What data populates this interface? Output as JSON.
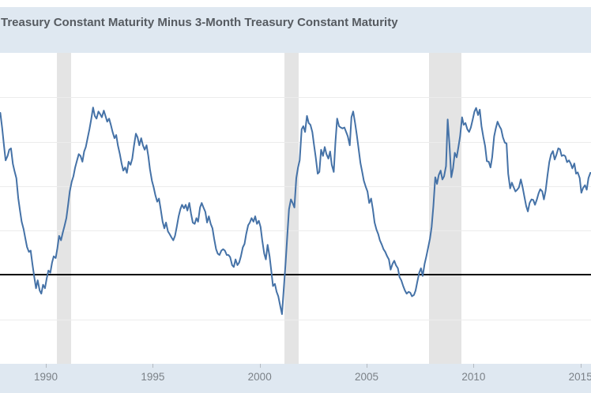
{
  "header": {
    "title": "Treasury Constant Maturity Minus 3-Month Treasury Constant Maturity"
  },
  "colors": {
    "line": "#4572a7",
    "header_background": "#dfe8f1",
    "axis_background": "#dfe8f1",
    "recession_band": "#e4e4e4",
    "gridline": "#ececec",
    "zero_line": "#000000",
    "title_text": "#565b61",
    "axis_label_text": "#7b8187"
  },
  "chart_data": {
    "type": "line",
    "title": "Treasury Constant Maturity Minus 3-Month Treasury Constant Maturity",
    "xlabel": "",
    "ylabel": "",
    "grid": true,
    "legend_position": "none",
    "xlim": [
      1987.857,
      2015.49
    ],
    "ylim": [
      -2,
      5
    ],
    "gridline_step": 1,
    "gridline_values": [
      4,
      3,
      2,
      1,
      -1
    ],
    "zero_line_value": 0,
    "x_tick_values": [
      1990,
      1995,
      2000,
      2005,
      2010,
      2015
    ],
    "x_tick_labels": [
      "1990",
      "1995",
      "2000",
      "2005",
      "2010",
      "2015"
    ],
    "recession_bands": [
      [
        1990.5,
        1991.17
      ],
      [
        2001.17,
        2001.83
      ],
      [
        2007.92,
        2009.42
      ]
    ],
    "series_name": "Treasury Constant Maturity Minus 3-Month Treasury Constant Maturity",
    "points": [
      [
        1987.87,
        3.65
      ],
      [
        1987.96,
        3.3
      ],
      [
        1988.04,
        2.92
      ],
      [
        1988.12,
        2.58
      ],
      [
        1988.21,
        2.68
      ],
      [
        1988.29,
        2.82
      ],
      [
        1988.37,
        2.85
      ],
      [
        1988.46,
        2.5
      ],
      [
        1988.54,
        2.33
      ],
      [
        1988.62,
        2.18
      ],
      [
        1988.71,
        1.73
      ],
      [
        1988.79,
        1.45
      ],
      [
        1988.87,
        1.2
      ],
      [
        1988.96,
        1.03
      ],
      [
        1989.04,
        0.83
      ],
      [
        1989.12,
        0.63
      ],
      [
        1989.21,
        0.52
      ],
      [
        1989.29,
        0.55
      ],
      [
        1989.37,
        0.25
      ],
      [
        1989.46,
        -0.05
      ],
      [
        1989.54,
        -0.3
      ],
      [
        1989.62,
        -0.12
      ],
      [
        1989.71,
        -0.35
      ],
      [
        1989.79,
        -0.42
      ],
      [
        1989.87,
        -0.22
      ],
      [
        1989.96,
        -0.3
      ],
      [
        1990.04,
        -0.08
      ],
      [
        1990.12,
        0.1
      ],
      [
        1990.21,
        0.05
      ],
      [
        1990.29,
        0.28
      ],
      [
        1990.37,
        0.42
      ],
      [
        1990.46,
        0.38
      ],
      [
        1990.54,
        0.6
      ],
      [
        1990.62,
        0.88
      ],
      [
        1990.71,
        0.78
      ],
      [
        1990.79,
        0.95
      ],
      [
        1990.87,
        1.1
      ],
      [
        1990.96,
        1.28
      ],
      [
        1991.04,
        1.58
      ],
      [
        1991.12,
        1.88
      ],
      [
        1991.21,
        2.1
      ],
      [
        1991.29,
        2.22
      ],
      [
        1991.37,
        2.42
      ],
      [
        1991.46,
        2.58
      ],
      [
        1991.54,
        2.72
      ],
      [
        1991.62,
        2.68
      ],
      [
        1991.71,
        2.55
      ],
      [
        1991.79,
        2.78
      ],
      [
        1991.87,
        2.88
      ],
      [
        1991.96,
        3.1
      ],
      [
        1992.04,
        3.28
      ],
      [
        1992.12,
        3.5
      ],
      [
        1992.21,
        3.77
      ],
      [
        1992.29,
        3.58
      ],
      [
        1992.37,
        3.52
      ],
      [
        1992.46,
        3.68
      ],
      [
        1992.54,
        3.62
      ],
      [
        1992.62,
        3.55
      ],
      [
        1992.71,
        3.7
      ],
      [
        1992.79,
        3.58
      ],
      [
        1992.87,
        3.45
      ],
      [
        1992.96,
        3.52
      ],
      [
        1993.04,
        3.38
      ],
      [
        1993.12,
        3.22
      ],
      [
        1993.21,
        3.08
      ],
      [
        1993.29,
        3.15
      ],
      [
        1993.37,
        2.92
      ],
      [
        1993.46,
        2.72
      ],
      [
        1993.54,
        2.52
      ],
      [
        1993.62,
        2.35
      ],
      [
        1993.71,
        2.42
      ],
      [
        1993.79,
        2.3
      ],
      [
        1993.87,
        2.55
      ],
      [
        1993.96,
        2.48
      ],
      [
        1994.04,
        2.62
      ],
      [
        1994.12,
        2.9
      ],
      [
        1994.21,
        3.18
      ],
      [
        1994.29,
        3.1
      ],
      [
        1994.37,
        2.92
      ],
      [
        1994.46,
        3.08
      ],
      [
        1994.54,
        2.92
      ],
      [
        1994.62,
        2.82
      ],
      [
        1994.71,
        2.92
      ],
      [
        1994.79,
        2.68
      ],
      [
        1994.87,
        2.38
      ],
      [
        1994.96,
        2.12
      ],
      [
        1995.04,
        1.98
      ],
      [
        1995.12,
        1.8
      ],
      [
        1995.21,
        1.65
      ],
      [
        1995.29,
        1.72
      ],
      [
        1995.37,
        1.48
      ],
      [
        1995.46,
        1.2
      ],
      [
        1995.54,
        1.05
      ],
      [
        1995.62,
        1.18
      ],
      [
        1995.71,
        0.98
      ],
      [
        1995.79,
        0.92
      ],
      [
        1995.87,
        0.85
      ],
      [
        1995.96,
        0.78
      ],
      [
        1996.04,
        0.88
      ],
      [
        1996.12,
        1.08
      ],
      [
        1996.21,
        1.32
      ],
      [
        1996.29,
        1.48
      ],
      [
        1996.37,
        1.58
      ],
      [
        1996.46,
        1.5
      ],
      [
        1996.54,
        1.58
      ],
      [
        1996.62,
        1.45
      ],
      [
        1996.71,
        1.62
      ],
      [
        1996.79,
        1.38
      ],
      [
        1996.87,
        1.18
      ],
      [
        1996.96,
        1.15
      ],
      [
        1997.04,
        1.28
      ],
      [
        1997.12,
        1.2
      ],
      [
        1997.21,
        1.52
      ],
      [
        1997.29,
        1.62
      ],
      [
        1997.37,
        1.52
      ],
      [
        1997.46,
        1.42
      ],
      [
        1997.54,
        1.18
      ],
      [
        1997.62,
        1.32
      ],
      [
        1997.71,
        1.15
      ],
      [
        1997.79,
        1.05
      ],
      [
        1997.87,
        0.82
      ],
      [
        1997.96,
        0.58
      ],
      [
        1998.04,
        0.48
      ],
      [
        1998.12,
        0.45
      ],
      [
        1998.21,
        0.55
      ],
      [
        1998.29,
        0.58
      ],
      [
        1998.37,
        0.55
      ],
      [
        1998.46,
        0.45
      ],
      [
        1998.54,
        0.45
      ],
      [
        1998.62,
        0.4
      ],
      [
        1998.71,
        0.22
      ],
      [
        1998.79,
        0.18
      ],
      [
        1998.87,
        0.35
      ],
      [
        1998.96,
        0.22
      ],
      [
        1999.04,
        0.28
      ],
      [
        1999.12,
        0.42
      ],
      [
        1999.21,
        0.62
      ],
      [
        1999.29,
        0.7
      ],
      [
        1999.37,
        0.92
      ],
      [
        1999.46,
        1.12
      ],
      [
        1999.54,
        1.18
      ],
      [
        1999.62,
        1.28
      ],
      [
        1999.71,
        1.2
      ],
      [
        1999.79,
        1.32
      ],
      [
        1999.87,
        1.15
      ],
      [
        1999.96,
        1.22
      ],
      [
        2000.04,
        1.08
      ],
      [
        2000.12,
        0.78
      ],
      [
        2000.21,
        0.48
      ],
      [
        2000.29,
        0.35
      ],
      [
        2000.37,
        0.68
      ],
      [
        2000.46,
        0.42
      ],
      [
        2000.54,
        0.1
      ],
      [
        2000.62,
        -0.25
      ],
      [
        2000.71,
        -0.2
      ],
      [
        2000.79,
        -0.38
      ],
      [
        2000.87,
        -0.48
      ],
      [
        2000.96,
        -0.7
      ],
      [
        2001.04,
        -0.88
      ],
      [
        2001.12,
        -0.35
      ],
      [
        2001.21,
        0.28
      ],
      [
        2001.29,
        0.88
      ],
      [
        2001.37,
        1.48
      ],
      [
        2001.46,
        1.7
      ],
      [
        2001.54,
        1.62
      ],
      [
        2001.62,
        1.52
      ],
      [
        2001.71,
        2.18
      ],
      [
        2001.79,
        2.42
      ],
      [
        2001.87,
        2.58
      ],
      [
        2001.96,
        3.28
      ],
      [
        2002.04,
        3.35
      ],
      [
        2002.12,
        3.22
      ],
      [
        2002.21,
        3.58
      ],
      [
        2002.29,
        3.42
      ],
      [
        2002.37,
        3.38
      ],
      [
        2002.46,
        3.22
      ],
      [
        2002.54,
        2.92
      ],
      [
        2002.62,
        2.65
      ],
      [
        2002.71,
        2.28
      ],
      [
        2002.79,
        2.32
      ],
      [
        2002.87,
        2.82
      ],
      [
        2002.96,
        2.68
      ],
      [
        2003.04,
        2.88
      ],
      [
        2003.12,
        2.72
      ],
      [
        2003.21,
        2.62
      ],
      [
        2003.29,
        2.78
      ],
      [
        2003.37,
        2.48
      ],
      [
        2003.46,
        2.32
      ],
      [
        2003.54,
        2.98
      ],
      [
        2003.62,
        3.52
      ],
      [
        2003.71,
        3.35
      ],
      [
        2003.79,
        3.32
      ],
      [
        2003.87,
        3.3
      ],
      [
        2003.96,
        3.32
      ],
      [
        2004.04,
        3.22
      ],
      [
        2004.12,
        3.12
      ],
      [
        2004.21,
        2.92
      ],
      [
        2004.29,
        3.55
      ],
      [
        2004.37,
        3.68
      ],
      [
        2004.46,
        3.42
      ],
      [
        2004.54,
        3.15
      ],
      [
        2004.62,
        2.85
      ],
      [
        2004.71,
        2.52
      ],
      [
        2004.79,
        2.32
      ],
      [
        2004.87,
        2.12
      ],
      [
        2004.96,
        1.98
      ],
      [
        2005.04,
        1.88
      ],
      [
        2005.12,
        1.62
      ],
      [
        2005.21,
        1.72
      ],
      [
        2005.29,
        1.48
      ],
      [
        2005.37,
        1.18
      ],
      [
        2005.46,
        1.02
      ],
      [
        2005.54,
        0.92
      ],
      [
        2005.62,
        0.78
      ],
      [
        2005.71,
        0.68
      ],
      [
        2005.79,
        0.58
      ],
      [
        2005.87,
        0.52
      ],
      [
        2005.96,
        0.42
      ],
      [
        2006.04,
        0.35
      ],
      [
        2006.12,
        0.12
      ],
      [
        2006.21,
        0.25
      ],
      [
        2006.29,
        0.32
      ],
      [
        2006.37,
        0.22
      ],
      [
        2006.46,
        0.15
      ],
      [
        2006.54,
        -0.05
      ],
      [
        2006.62,
        -0.12
      ],
      [
        2006.71,
        -0.25
      ],
      [
        2006.79,
        -0.35
      ],
      [
        2006.87,
        -0.42
      ],
      [
        2006.96,
        -0.38
      ],
      [
        2007.04,
        -0.4
      ],
      [
        2007.12,
        -0.48
      ],
      [
        2007.21,
        -0.45
      ],
      [
        2007.29,
        -0.35
      ],
      [
        2007.37,
        -0.15
      ],
      [
        2007.46,
        0.05
      ],
      [
        2007.54,
        0.15
      ],
      [
        2007.62,
        -0.02
      ],
      [
        2007.71,
        0.25
      ],
      [
        2007.79,
        0.42
      ],
      [
        2007.87,
        0.6
      ],
      [
        2007.96,
        0.82
      ],
      [
        2008.04,
        1.08
      ],
      [
        2008.12,
        1.55
      ],
      [
        2008.21,
        2.2
      ],
      [
        2008.29,
        2.05
      ],
      [
        2008.37,
        2.25
      ],
      [
        2008.46,
        2.35
      ],
      [
        2008.54,
        2.15
      ],
      [
        2008.62,
        2.22
      ],
      [
        2008.71,
        2.45
      ],
      [
        2008.79,
        3.5
      ],
      [
        2008.87,
        2.95
      ],
      [
        2008.96,
        2.2
      ],
      [
        2009.04,
        2.4
      ],
      [
        2009.12,
        2.75
      ],
      [
        2009.21,
        2.65
      ],
      [
        2009.29,
        2.88
      ],
      [
        2009.37,
        3.12
      ],
      [
        2009.46,
        3.55
      ],
      [
        2009.54,
        3.38
      ],
      [
        2009.62,
        3.42
      ],
      [
        2009.71,
        3.28
      ],
      [
        2009.79,
        3.22
      ],
      [
        2009.87,
        3.32
      ],
      [
        2009.96,
        3.5
      ],
      [
        2010.04,
        3.68
      ],
      [
        2010.12,
        3.76
      ],
      [
        2010.21,
        3.6
      ],
      [
        2010.29,
        3.72
      ],
      [
        2010.37,
        3.35
      ],
      [
        2010.46,
        3.1
      ],
      [
        2010.54,
        2.9
      ],
      [
        2010.62,
        2.56
      ],
      [
        2010.71,
        2.55
      ],
      [
        2010.79,
        2.42
      ],
      [
        2010.87,
        2.65
      ],
      [
        2010.96,
        3.12
      ],
      [
        2011.04,
        3.3
      ],
      [
        2011.12,
        3.45
      ],
      [
        2011.21,
        3.35
      ],
      [
        2011.29,
        3.28
      ],
      [
        2011.37,
        3.1
      ],
      [
        2011.46,
        2.98
      ],
      [
        2011.54,
        2.96
      ],
      [
        2011.62,
        2.28
      ],
      [
        2011.71,
        1.95
      ],
      [
        2011.79,
        2.08
      ],
      [
        2011.87,
        1.98
      ],
      [
        2011.96,
        1.88
      ],
      [
        2012.04,
        1.92
      ],
      [
        2012.12,
        1.97
      ],
      [
        2012.21,
        2.15
      ],
      [
        2012.29,
        1.98
      ],
      [
        2012.37,
        1.78
      ],
      [
        2012.46,
        1.55
      ],
      [
        2012.54,
        1.43
      ],
      [
        2012.62,
        1.62
      ],
      [
        2012.71,
        1.7
      ],
      [
        2012.79,
        1.69
      ],
      [
        2012.87,
        1.58
      ],
      [
        2012.96,
        1.7
      ],
      [
        2013.04,
        1.84
      ],
      [
        2013.12,
        1.93
      ],
      [
        2013.21,
        1.88
      ],
      [
        2013.29,
        1.7
      ],
      [
        2013.37,
        1.9
      ],
      [
        2013.46,
        2.25
      ],
      [
        2013.54,
        2.54
      ],
      [
        2013.62,
        2.71
      ],
      [
        2013.71,
        2.79
      ],
      [
        2013.79,
        2.6
      ],
      [
        2013.87,
        2.7
      ],
      [
        2013.96,
        2.85
      ],
      [
        2014.04,
        2.83
      ],
      [
        2014.12,
        2.68
      ],
      [
        2014.21,
        2.7
      ],
      [
        2014.29,
        2.67
      ],
      [
        2014.37,
        2.54
      ],
      [
        2014.46,
        2.58
      ],
      [
        2014.54,
        2.51
      ],
      [
        2014.62,
        2.4
      ],
      [
        2014.71,
        2.51
      ],
      [
        2014.79,
        2.28
      ],
      [
        2014.87,
        2.31
      ],
      [
        2014.96,
        2.18
      ],
      [
        2015.04,
        1.85
      ],
      [
        2015.12,
        1.96
      ],
      [
        2015.21,
        2.02
      ],
      [
        2015.29,
        1.92
      ],
      [
        2015.37,
        2.18
      ],
      [
        2015.46,
        2.3
      ]
    ]
  }
}
